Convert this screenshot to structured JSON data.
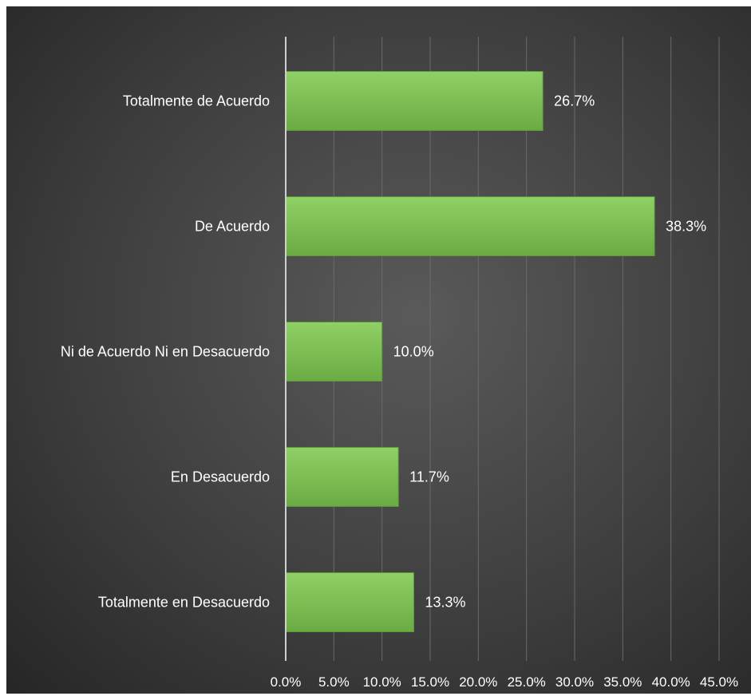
{
  "chart_data": {
    "type": "bar",
    "orientation": "horizontal",
    "title": "",
    "xlabel": "",
    "ylabel": "",
    "categories": [
      "Totalmente de Acuerdo",
      "De Acuerdo",
      "Ni de Acuerdo Ni en Desacuerdo",
      "En Desacuerdo",
      "Totalmente en Desacuerdo"
    ],
    "values": [
      26.7,
      38.3,
      10.0,
      11.7,
      13.3
    ],
    "data_labels": [
      "26.7%",
      "38.3%",
      "10.0%",
      "11.7%",
      "13.3%"
    ],
    "xlim": [
      0,
      45
    ],
    "x_ticks": [
      0,
      5,
      10,
      15,
      20,
      25,
      30,
      35,
      40,
      45
    ],
    "x_tick_labels": [
      "0.0%",
      "5.0%",
      "10.0%",
      "15.0%",
      "20.0%",
      "25.0%",
      "30.0%",
      "35.0%",
      "40.0%",
      "45.0%"
    ],
    "grid": true,
    "legend": "none",
    "colors": {
      "bar": "#72b84a",
      "bar_top": "#8fd166",
      "background": "#3f3f3f",
      "grid": "#6a6a6a",
      "axis": "#cfcfcf",
      "text": "#ffffff"
    }
  }
}
